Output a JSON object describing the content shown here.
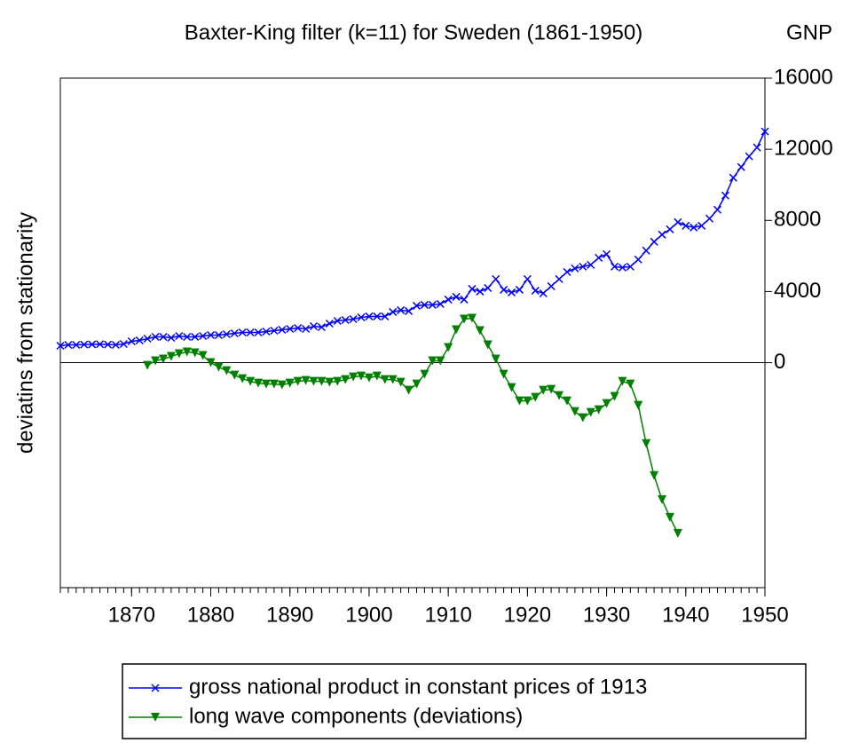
{
  "chart_data": {
    "type": "line",
    "title": "Baxter-King filter (k=11) for Sweden (1861-1950)",
    "y2_title": "GNP",
    "ylabel": "deviatins from stationarity",
    "x": [
      1861,
      1862,
      1863,
      1864,
      1865,
      1866,
      1867,
      1868,
      1869,
      1870,
      1871,
      1872,
      1873,
      1874,
      1875,
      1876,
      1877,
      1878,
      1879,
      1880,
      1881,
      1882,
      1883,
      1884,
      1885,
      1886,
      1887,
      1888,
      1889,
      1890,
      1891,
      1892,
      1893,
      1894,
      1895,
      1896,
      1897,
      1898,
      1899,
      1900,
      1901,
      1902,
      1903,
      1904,
      1905,
      1906,
      1907,
      1908,
      1909,
      1910,
      1911,
      1912,
      1913,
      1914,
      1915,
      1916,
      1917,
      1918,
      1919,
      1920,
      1921,
      1922,
      1923,
      1924,
      1925,
      1926,
      1927,
      1928,
      1929,
      1930,
      1931,
      1932,
      1933,
      1934,
      1935,
      1936,
      1937,
      1938,
      1939,
      1940,
      1941,
      1942,
      1943,
      1944,
      1945,
      1946,
      1947,
      1948,
      1949,
      1950
    ],
    "series": [
      {
        "name": "gross national product in constant prices of 1913",
        "color": "#0000ff",
        "marker": "x",
        "values": [
          950,
          1000,
          1000,
          1020,
          1030,
          1040,
          1020,
          1000,
          1050,
          1200,
          1250,
          1350,
          1450,
          1450,
          1400,
          1500,
          1450,
          1450,
          1500,
          1550,
          1550,
          1600,
          1650,
          1700,
          1700,
          1700,
          1750,
          1800,
          1850,
          1900,
          1950,
          1900,
          2050,
          2000,
          2200,
          2350,
          2400,
          2450,
          2550,
          2600,
          2600,
          2600,
          2850,
          2950,
          2900,
          3200,
          3250,
          3250,
          3300,
          3550,
          3700,
          3550,
          4150,
          4000,
          4200,
          4700,
          4100,
          3950,
          4100,
          4700,
          4050,
          3900,
          4300,
          4700,
          5100,
          5300,
          5400,
          5500,
          5900,
          6100,
          5400,
          5350,
          5400,
          5800,
          6300,
          6800,
          7200,
          7500,
          7900,
          7700,
          7600,
          7700,
          8100,
          8600,
          9400,
          10400,
          11000,
          11600,
          12100,
          13000
        ]
      },
      {
        "name": "long wave components (deviations)",
        "color": "#008000",
        "marker": "triangle-down",
        "values": [
          null,
          null,
          null,
          null,
          null,
          null,
          null,
          null,
          null,
          null,
          null,
          -150,
          100,
          200,
          350,
          500,
          600,
          550,
          400,
          0,
          -250,
          -450,
          -700,
          -900,
          -1050,
          -1150,
          -1200,
          -1200,
          -1250,
          -1150,
          -1050,
          -1000,
          -1050,
          -1050,
          -1100,
          -1050,
          -950,
          -800,
          -750,
          -850,
          -750,
          -950,
          -950,
          -1100,
          -1550,
          -1200,
          -650,
          100,
          100,
          850,
          1850,
          2450,
          2500,
          1800,
          1000,
          200,
          -650,
          -1400,
          -2150,
          -2150,
          -1950,
          -1550,
          -1500,
          -1850,
          -2150,
          -2750,
          -3100,
          -2800,
          -2650,
          -2300,
          -1900,
          -1050,
          -1200,
          -2400,
          -4550,
          -6350,
          -7700,
          -8700,
          -9600,
          null,
          null,
          null,
          null,
          null,
          null,
          null,
          null,
          null,
          null,
          null
        ]
      }
    ],
    "xlim": [
      1861,
      1950
    ],
    "xticks": [
      1870,
      1880,
      1890,
      1900,
      1910,
      1920,
      1930,
      1940,
      1950
    ],
    "ylim": [
      -12650,
      16000
    ],
    "yticks": [
      0,
      4000,
      8000,
      12000,
      16000
    ],
    "zero_line": true
  }
}
